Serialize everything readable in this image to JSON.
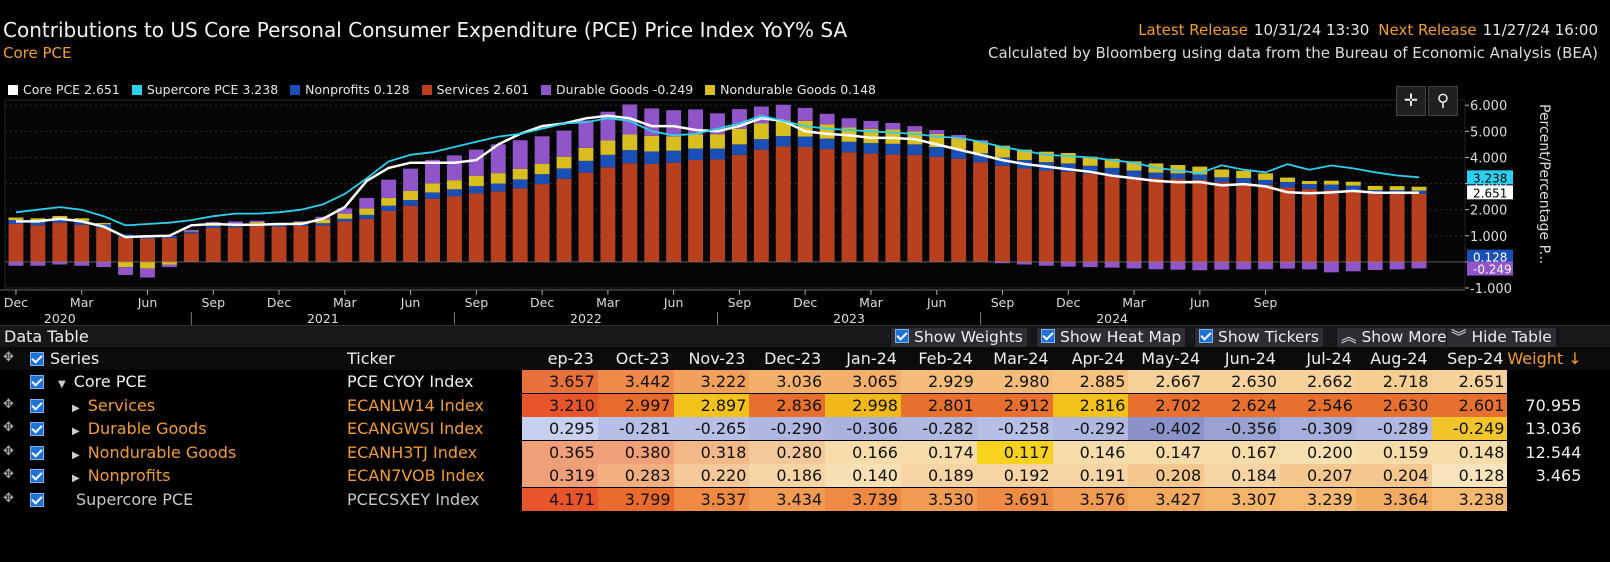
{
  "header": {
    "title": "Contributions to US Core Personal Consumer Expenditure (PCE) Price Index YoY% SA",
    "subtitle": "Core PCE",
    "latest_release_label": "Latest Release",
    "latest_release_value": "10/31/24 13:30",
    "next_release_label": "Next Release",
    "next_release_value": "11/27/24 16:00",
    "source": "Calculated by Bloomberg using data from the Bureau of Economic Analysis (BEA)"
  },
  "legend": [
    {
      "text": "Core PCE 2.651",
      "color": "#ffffff"
    },
    {
      "text": "Supercore PCE 3.238",
      "color": "#2bd0f0"
    },
    {
      "text": "Nonprofits 0.128",
      "color": "#1a4fb5"
    },
    {
      "text": "Services 2.601",
      "color": "#b8401e"
    },
    {
      "text": "Durable Goods -0.249",
      "color": "#9055c8"
    },
    {
      "text": "Nondurable Goods 0.148",
      "color": "#d8be1e"
    }
  ],
  "chart_data": {
    "type": "bar",
    "stacked": true,
    "y_axis_label": "Percent/Percentage P...",
    "ylim": [
      -1,
      6.2
    ],
    "y_ticks": [
      "6.000",
      "5.000",
      "4.000",
      "3.000",
      "2.000",
      "1.000",
      "",
      "-1.000"
    ],
    "y_tick_values": [
      6,
      5,
      4,
      3,
      2,
      1,
      0,
      -1
    ],
    "x_month_labels": [
      "Dec",
      "Mar",
      "Jun",
      "Sep",
      "Dec",
      "Mar",
      "Jun",
      "Sep",
      "Dec",
      "Mar",
      "Jun",
      "Sep",
      "Dec",
      "Mar",
      "Jun",
      "Sep",
      "Dec",
      "Mar",
      "Jun",
      "Sep"
    ],
    "x_year_labels": [
      "2020",
      "2021",
      "2022",
      "2023",
      "2024"
    ],
    "x_start": "2019-12",
    "end_labels": [
      "3.238",
      "2.651",
      "0.128",
      "-0.249"
    ],
    "series": [
      {
        "name": "Services",
        "color": "#b8401e",
        "values": [
          1.45,
          1.4,
          1.5,
          1.42,
          1.3,
          0.95,
          0.9,
          0.92,
          1.1,
          1.3,
          1.32,
          1.4,
          1.35,
          1.38,
          1.4,
          1.55,
          1.65,
          1.95,
          2.15,
          2.42,
          2.52,
          2.62,
          2.7,
          2.82,
          2.98,
          3.18,
          3.42,
          3.62,
          3.78,
          3.75,
          3.8,
          3.9,
          3.92,
          4.1,
          4.3,
          4.42,
          4.4,
          4.32,
          4.2,
          4.15,
          4.12,
          4.1,
          4.02,
          3.95,
          3.82,
          3.68,
          3.58,
          3.5,
          3.45,
          3.38,
          3.32,
          3.25,
          3.2,
          3.18,
          3.15,
          3.05,
          3.02,
          2.95,
          2.85,
          2.8,
          2.75,
          2.72,
          2.62,
          2.62,
          2.6
        ]
      },
      {
        "name": "Nonprofits",
        "color": "#1a4fb5",
        "values": [
          0.15,
          0.15,
          0.16,
          0.15,
          0.14,
          0.1,
          0.08,
          0.08,
          0.08,
          0.08,
          0.08,
          0.08,
          0.07,
          0.07,
          0.08,
          0.1,
          0.15,
          0.2,
          0.22,
          0.24,
          0.26,
          0.28,
          0.3,
          0.34,
          0.38,
          0.4,
          0.45,
          0.48,
          0.5,
          0.48,
          0.46,
          0.44,
          0.42,
          0.4,
          0.4,
          0.4,
          0.4,
          0.4,
          0.4,
          0.4,
          0.4,
          0.4,
          0.38,
          0.36,
          0.34,
          0.32,
          0.32,
          0.32,
          0.32,
          0.3,
          0.28,
          0.25,
          0.22,
          0.21,
          0.2,
          0.19,
          0.19,
          0.19,
          0.21,
          0.18,
          0.21,
          0.2,
          0.13,
          0.13,
          0.13
        ]
      },
      {
        "name": "Nondurable Goods",
        "color": "#d8be1e",
        "values": [
          0.1,
          0.12,
          0.1,
          0.1,
          0.05,
          -0.2,
          -0.25,
          -0.1,
          0.0,
          0.05,
          0.05,
          0.05,
          0.05,
          0.1,
          0.15,
          0.2,
          0.25,
          0.3,
          0.35,
          0.35,
          0.35,
          0.4,
          0.4,
          0.4,
          0.4,
          0.45,
          0.5,
          0.55,
          0.6,
          0.6,
          0.55,
          0.55,
          0.55,
          0.6,
          0.6,
          0.6,
          0.6,
          0.55,
          0.55,
          0.55,
          0.55,
          0.5,
          0.5,
          0.45,
          0.45,
          0.45,
          0.4,
          0.4,
          0.4,
          0.35,
          0.35,
          0.35,
          0.35,
          0.32,
          0.3,
          0.3,
          0.28,
          0.25,
          0.17,
          0.12,
          0.15,
          0.15,
          0.16,
          0.15,
          0.15
        ]
      },
      {
        "name": "Durable Goods",
        "color": "#9055c8",
        "values": [
          -0.15,
          -0.15,
          -0.1,
          -0.15,
          -0.2,
          -0.3,
          -0.35,
          -0.1,
          0.05,
          0.1,
          0.1,
          0.05,
          0.0,
          0.0,
          0.1,
          0.2,
          0.4,
          0.7,
          0.85,
          0.9,
          0.95,
          1.0,
          1.1,
          1.1,
          1.05,
          1.0,
          1.05,
          1.1,
          1.15,
          1.05,
          1.0,
          0.95,
          0.8,
          0.75,
          0.65,
          0.6,
          0.5,
          0.4,
          0.35,
          0.3,
          0.25,
          0.2,
          0.15,
          0.1,
          0.05,
          -0.05,
          -0.1,
          -0.15,
          -0.18,
          -0.2,
          -0.22,
          -0.25,
          -0.28,
          -0.3,
          -0.32,
          -0.3,
          -0.29,
          -0.28,
          -0.26,
          -0.29,
          -0.4,
          -0.36,
          -0.31,
          -0.29,
          -0.25
        ]
      },
      {
        "name": "Core PCE",
        "color": "#ffffff",
        "type": "line",
        "values": [
          1.55,
          1.55,
          1.65,
          1.55,
          1.35,
          0.95,
          0.98,
          1.0,
          1.4,
          1.45,
          1.42,
          1.42,
          1.45,
          1.45,
          1.65,
          2.1,
          3.1,
          3.6,
          3.8,
          3.8,
          3.8,
          3.9,
          4.5,
          4.9,
          5.2,
          5.3,
          5.5,
          5.6,
          5.5,
          5.2,
          5.2,
          5.05,
          5.0,
          5.2,
          5.5,
          5.4,
          5.0,
          4.9,
          4.85,
          4.75,
          4.75,
          4.7,
          4.5,
          4.3,
          4.1,
          3.9,
          3.75,
          3.65,
          3.55,
          3.45,
          3.3,
          3.2,
          3.1,
          3.05,
          3.06,
          2.93,
          2.98,
          2.89,
          2.67,
          2.63,
          2.66,
          2.72,
          2.65,
          2.65,
          2.65
        ]
      },
      {
        "name": "Supercore PCE",
        "color": "#2bd0f0",
        "type": "line",
        "values": [
          1.9,
          2.0,
          2.1,
          2.0,
          1.75,
          1.4,
          1.45,
          1.5,
          1.6,
          1.75,
          1.85,
          1.85,
          1.9,
          2.0,
          2.2,
          2.6,
          3.2,
          3.85,
          4.1,
          4.2,
          4.4,
          4.6,
          4.8,
          4.9,
          5.1,
          5.3,
          5.35,
          5.5,
          5.4,
          5.0,
          4.85,
          4.9,
          5.1,
          5.3,
          5.6,
          5.4,
          5.2,
          5.1,
          5.05,
          5.0,
          4.95,
          4.9,
          4.8,
          4.75,
          4.6,
          4.4,
          4.25,
          4.1,
          4.05,
          4.0,
          3.9,
          3.8,
          3.6,
          3.5,
          3.4,
          3.7,
          3.53,
          3.43,
          3.74,
          3.53,
          3.69,
          3.58,
          3.43,
          3.31,
          3.24
        ]
      }
    ]
  },
  "table": {
    "title": "Data Table",
    "buttons": {
      "show_weights": "Show Weights",
      "show_heat_map": "Show Heat Map",
      "show_tickers": "Show Tickers",
      "show_more": "Show More",
      "hide_table": "Hide Table"
    },
    "headers": {
      "series": "Series",
      "ticker": "Ticker",
      "weight": "Weight ↓"
    },
    "columns": [
      "ep-23",
      "Oct-23",
      "Nov-23",
      "Dec-23",
      "Jan-24",
      "Feb-24",
      "Mar-24",
      "Apr-24",
      "May-24",
      "Jun-24",
      "Jul-24",
      "Aug-24",
      "Sep-24"
    ],
    "rows": [
      {
        "name": "Core PCE",
        "ticker": "PCE CYOY Index",
        "weight": "",
        "expanded": true,
        "values": [
          "3.657",
          "3.442",
          "3.222",
          "3.036",
          "3.065",
          "2.929",
          "2.980",
          "2.885",
          "2.667",
          "2.630",
          "2.662",
          "2.718",
          "2.651"
        ],
        "colors": [
          "#e8703a",
          "#ef8a4a",
          "#f0a05a",
          "#f3b06a",
          "#f3b06a",
          "#f4bb7a",
          "#f4bb7a",
          "#f5c27f",
          "#f6d29a",
          "#f6d29a",
          "#f6d29a",
          "#f5cd90",
          "#f6d29a"
        ]
      },
      {
        "name": "Services",
        "ticker": "ECANLW14 Index",
        "weight": "70.955",
        "values": [
          "3.210",
          "2.997",
          "2.897",
          "2.836",
          "2.998",
          "2.801",
          "2.912",
          "2.816",
          "2.702",
          "2.624",
          "2.546",
          "2.630",
          "2.601"
        ],
        "colors": [
          "#e8552a",
          "#e86a2d",
          "#f2c21a",
          "#e8702f",
          "#f2b81a",
          "#e8702f",
          "#e8702f",
          "#f2c21a",
          "#e8702f",
          "#e8702f",
          "#e8702f",
          "#e8702f",
          "#e8702f"
        ]
      },
      {
        "name": "Durable Goods",
        "ticker": "ECANGWSI Index",
        "weight": "13.036",
        "values": [
          "0.295",
          "-0.281",
          "-0.265",
          "-0.290",
          "-0.306",
          "-0.282",
          "-0.258",
          "-0.292",
          "-0.402",
          "-0.356",
          "-0.309",
          "-0.289",
          "-0.249"
        ],
        "colors": [
          "#c8d0f0",
          "#b8bfe6",
          "#b8bfe6",
          "#b0b8e2",
          "#aab2de",
          "#b0b8e2",
          "#b8bfe6",
          "#b0b8e2",
          "#8a92c8",
          "#9aa2d2",
          "#a6aedc",
          "#b0b8e2",
          "#f2c62a"
        ]
      },
      {
        "name": "Nondurable Goods",
        "ticker": "ECANH3TJ Index",
        "weight": "12.544",
        "values": [
          "0.365",
          "0.380",
          "0.318",
          "0.280",
          "0.166",
          "0.174",
          "0.117",
          "0.146",
          "0.147",
          "0.167",
          "0.200",
          "0.159",
          "0.148"
        ],
        "colors": [
          "#f0a078",
          "#f0a078",
          "#f2b888",
          "#f4c898",
          "#f6dca8",
          "#f6dca8",
          "#f8d21e",
          "#f6dca8",
          "#f6dca8",
          "#f6dca8",
          "#f6e0b0",
          "#f6dca8",
          "#f6dca8"
        ]
      },
      {
        "name": "Nonprofits",
        "ticker": "ECAN7VOB Index",
        "weight": "3.465",
        "values": [
          "0.319",
          "0.283",
          "0.220",
          "0.186",
          "0.140",
          "0.189",
          "0.192",
          "0.191",
          "0.208",
          "0.184",
          "0.207",
          "0.204",
          "0.128"
        ],
        "colors": [
          "#f0a078",
          "#f2b080",
          "#f4c898",
          "#f6d4a4",
          "#f8e0b4",
          "#f6d4a4",
          "#f6d4a4",
          "#f6d4a4",
          "#f5c890",
          "#f6d4a4",
          "#f5c890",
          "#f5c890",
          "#f8e4bc"
        ]
      },
      {
        "name": "Supercore PCE",
        "ticker": "PCECSXEY Index",
        "weight": "",
        "plain": true,
        "values": [
          "4.171",
          "3.799",
          "3.537",
          "3.434",
          "3.739",
          "3.530",
          "3.691",
          "3.576",
          "3.427",
          "3.307",
          "3.239",
          "3.364",
          "3.238"
        ],
        "colors": [
          "#e8552a",
          "#e86a2d",
          "#ee8a44",
          "#f09a52",
          "#ee8a44",
          "#f09a52",
          "#ee8a44",
          "#f09a52",
          "#f2a85e",
          "#f4b46a",
          "#f4b870",
          "#f2ac62",
          "#f4b870"
        ]
      }
    ]
  }
}
